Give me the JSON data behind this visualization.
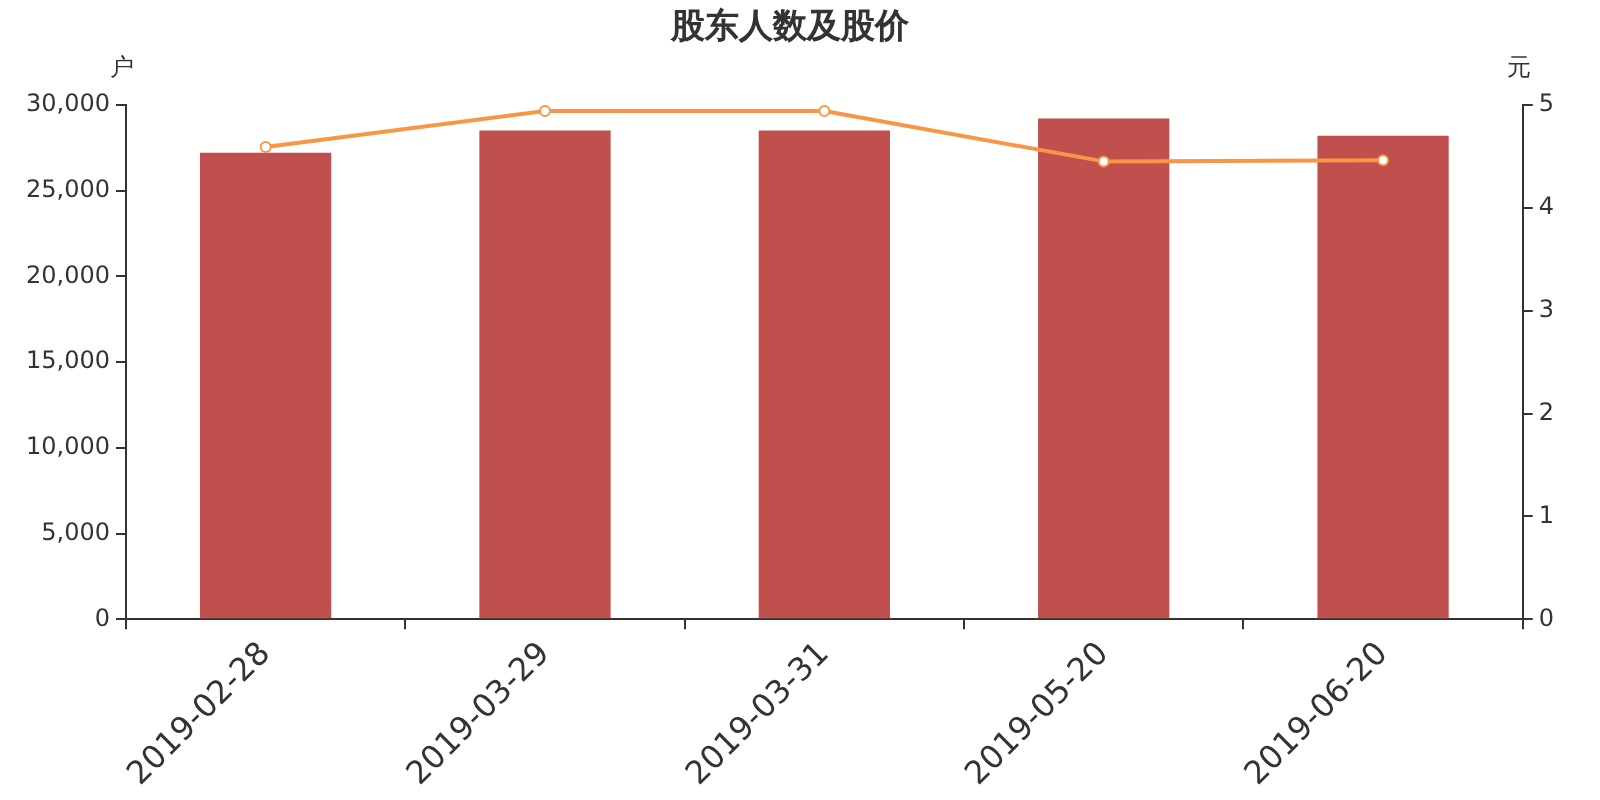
{
  "chart_data": {
    "type": "bar",
    "title": "股东人数及股价",
    "ylabel": "户",
    "y2label": "元",
    "categories": [
      "2019-02-28",
      "2019-03-29",
      "2019-03-31",
      "2019-05-20",
      "2019-06-20"
    ],
    "series": [
      {
        "color": "#c0504d",
        "values": [
          27200,
          28500,
          28500,
          29200,
          28200
        ]
      },
      {
        "type": "line",
        "axis": "y2",
        "color": "#f79646",
        "values": [
          4.59,
          4.94,
          4.94,
          4.45,
          4.46
        ]
      }
    ],
    "ylim": [
      0,
      30000
    ],
    "yticks": [
      0,
      {
        "value": 5000,
        "label": "5,000"
      },
      {
        "value": 10000,
        "label": "10,000"
      },
      {
        "value": 15000,
        "label": "15,000"
      },
      {
        "value": 20000,
        "label": "20,000"
      },
      {
        "value": 25000,
        "label": "25,000"
      },
      {
        "value": 30000,
        "label": "30,000"
      }
    ],
    "y2lim": [
      0,
      5
    ],
    "y2ticks": [
      0,
      1,
      2,
      3,
      4,
      5
    ],
    "grid": false,
    "legend": false,
    "marker": "circle",
    "line_style": "solid"
  }
}
